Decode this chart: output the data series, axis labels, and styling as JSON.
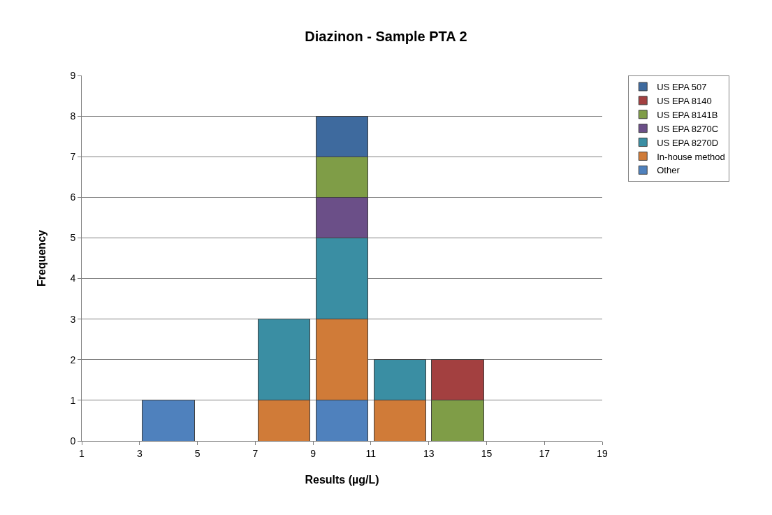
{
  "chart_data": {
    "type": "bar",
    "title": "Diazinon - Sample PTA 2",
    "xlabel": "Results (µg/L)",
    "ylabel": "Frequency",
    "x": [
      4,
      8,
      10,
      12,
      14
    ],
    "stacked": true,
    "series": [
      {
        "name": "Other",
        "color": "#4f81bd",
        "values": [
          1,
          null,
          1,
          null,
          null
        ]
      },
      {
        "name": "In-house method",
        "color": "#d07b38",
        "values": [
          null,
          1,
          2,
          1,
          null
        ]
      },
      {
        "name": "US EPA 8270D",
        "color": "#3a8ea3",
        "values": [
          null,
          2,
          2,
          1,
          null
        ]
      },
      {
        "name": "US EPA 8270C",
        "color": "#6b4f88",
        "values": [
          null,
          null,
          1,
          null,
          null
        ]
      },
      {
        "name": "US EPA 8141B",
        "color": "#7f9d47",
        "values": [
          null,
          null,
          1,
          null,
          1
        ]
      },
      {
        "name": "US EPA 8140",
        "color": "#a34040",
        "values": [
          null,
          null,
          null,
          null,
          1
        ]
      },
      {
        "name": "US EPA 507",
        "color": "#3e6a9e",
        "values": [
          null,
          null,
          1,
          null,
          null
        ]
      }
    ],
    "xlim": [
      1,
      19
    ],
    "xticks": [
      1,
      3,
      5,
      7,
      9,
      11,
      13,
      15,
      17,
      19
    ],
    "ylim": [
      0,
      9
    ],
    "yticks": [
      0,
      1,
      2,
      3,
      4,
      5,
      6,
      7,
      8,
      9
    ],
    "grid": "y",
    "legend": "top right"
  }
}
